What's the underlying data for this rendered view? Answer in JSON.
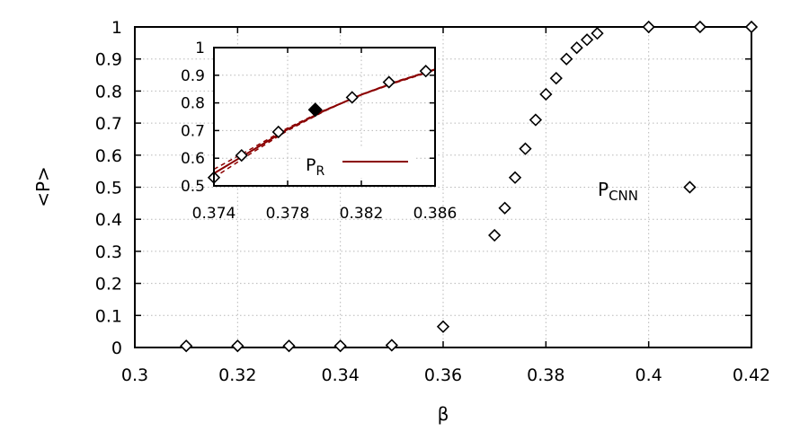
{
  "chart_data": [
    {
      "type": "scatter",
      "xlabel": "β",
      "ylabel": "<P>",
      "xlim": [
        0.3,
        0.42
      ],
      "ylim": [
        0,
        1
      ],
      "xticks": [
        0.3,
        0.32,
        0.34,
        0.36,
        0.38,
        0.4,
        0.42
      ],
      "xtick_labels": [
        "0.3",
        "0.32",
        "0.34",
        "0.36",
        "0.38",
        "0.4",
        "0.42"
      ],
      "yticks": [
        0,
        0.1,
        0.2,
        0.3,
        0.4,
        0.5,
        0.6,
        0.7,
        0.8,
        0.9,
        1
      ],
      "ytick_labels": [
        "0",
        "0.1",
        "0.2",
        "0.3",
        "0.4",
        "0.5",
        "0.6",
        "0.7",
        "0.8",
        "0.9",
        "1"
      ],
      "grid": true,
      "series_label": {
        "main": "P",
        "sub": "CNN"
      },
      "legend_marker_point": {
        "x": 0.408,
        "y": 0.5
      },
      "series": [
        {
          "marker": "open-diamond",
          "color": "#000000",
          "points": [
            {
              "x": 0.31,
              "y": 0.005
            },
            {
              "x": 0.32,
              "y": 0.005
            },
            {
              "x": 0.33,
              "y": 0.005
            },
            {
              "x": 0.34,
              "y": 0.005
            },
            {
              "x": 0.35,
              "y": 0.007
            },
            {
              "x": 0.36,
              "y": 0.065
            },
            {
              "x": 0.37,
              "y": 0.35
            },
            {
              "x": 0.372,
              "y": 0.435
            },
            {
              "x": 0.374,
              "y": 0.53
            },
            {
              "x": 0.376,
              "y": 0.62
            },
            {
              "x": 0.378,
              "y": 0.71
            },
            {
              "x": 0.38,
              "y": 0.79
            },
            {
              "x": 0.382,
              "y": 0.84
            },
            {
              "x": 0.384,
              "y": 0.9
            },
            {
              "x": 0.386,
              "y": 0.935
            },
            {
              "x": 0.388,
              "y": 0.96
            },
            {
              "x": 0.39,
              "y": 0.98
            },
            {
              "x": 0.4,
              "y": 1.0
            },
            {
              "x": 0.41,
              "y": 1.0
            },
            {
              "x": 0.42,
              "y": 1.0
            }
          ]
        }
      ]
    },
    {
      "type": "line",
      "role": "inset",
      "xlim": [
        0.374,
        0.386
      ],
      "ylim": [
        0.5,
        1
      ],
      "xticks": [
        0.374,
        0.378,
        0.382,
        0.386
      ],
      "xtick_labels": [
        "0.374",
        "0.378",
        "0.382",
        "0.386"
      ],
      "yticks": [
        0.5,
        0.6,
        0.7,
        0.8,
        0.9,
        1
      ],
      "ytick_labels": [
        "0.5",
        "0.6",
        "0.7",
        "0.8",
        "0.9",
        "1"
      ],
      "grid": true,
      "legend": {
        "main": "P",
        "sub": "R",
        "position": "bottom-right",
        "color": "#8b0000"
      },
      "curve_color": "#8b0000",
      "curves": [
        {
          "style": "solid",
          "x": [
            0.374,
            0.376,
            0.378,
            0.38,
            0.382,
            0.384,
            0.386
          ],
          "y": [
            0.545,
            0.625,
            0.705,
            0.772,
            0.83,
            0.878,
            0.92
          ]
        },
        {
          "style": "dashed",
          "x": [
            0.374,
            0.376,
            0.378,
            0.38,
            0.382,
            0.384,
            0.386
          ],
          "y": [
            0.56,
            0.633,
            0.709,
            0.774,
            0.829,
            0.876,
            0.918
          ]
        },
        {
          "style": "dashed",
          "x": [
            0.374,
            0.376,
            0.378,
            0.38,
            0.382,
            0.384,
            0.386
          ],
          "y": [
            0.53,
            0.617,
            0.7,
            0.77,
            0.831,
            0.88,
            0.922
          ]
        }
      ],
      "points": [
        {
          "x": 0.374,
          "y": 0.53,
          "filled": false
        },
        {
          "x": 0.3755,
          "y": 0.61,
          "filled": false
        },
        {
          "x": 0.3775,
          "y": 0.695,
          "filled": false
        },
        {
          "x": 0.3795,
          "y": 0.775,
          "filled": true
        },
        {
          "x": 0.3815,
          "y": 0.82,
          "filled": false
        },
        {
          "x": 0.3835,
          "y": 0.875,
          "filled": false
        },
        {
          "x": 0.3855,
          "y": 0.915,
          "filled": false
        }
      ]
    }
  ]
}
